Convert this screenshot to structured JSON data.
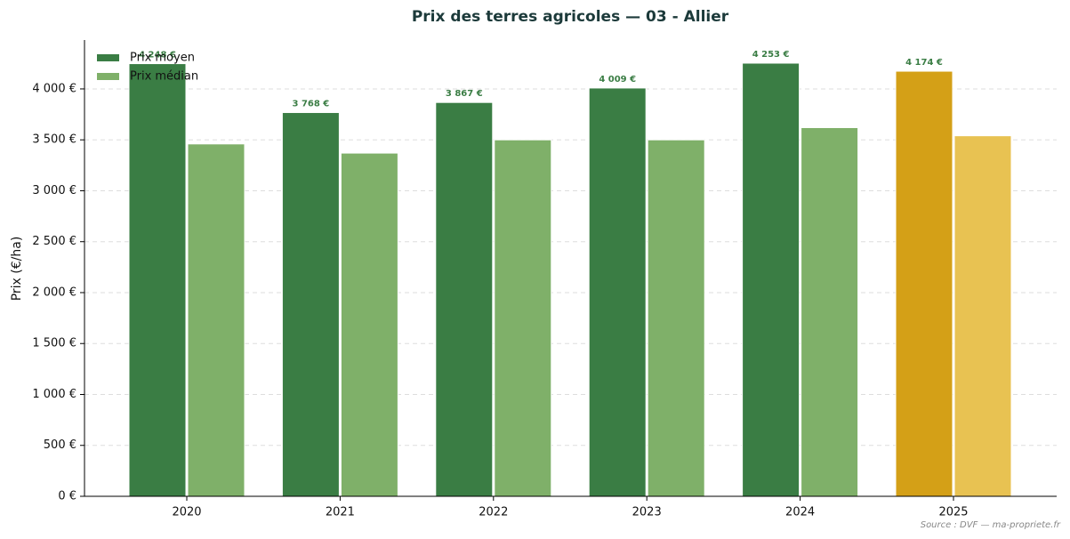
{
  "chart_data": {
    "type": "bar",
    "title": "Prix des terres agricoles — 03 - Allier",
    "ylabel": "Prix (€/ha)",
    "source": "Source : DVF — ma-propriete.fr",
    "categories": [
      "2020",
      "2021",
      "2022",
      "2023",
      "2024",
      "2025"
    ],
    "series": [
      {
        "name": "Prix moyen",
        "color": "#3a7d44",
        "colors": [
          "#3a7d44",
          "#3a7d44",
          "#3a7d44",
          "#3a7d44",
          "#3a7d44",
          "#d4a017"
        ],
        "values": [
          4248,
          3768,
          3867,
          4009,
          4253,
          4174
        ],
        "value_labels": [
          "4 248 €",
          "3 768 €",
          "3 867 €",
          "4 009 €",
          "4 253 €",
          "4 174 €"
        ]
      },
      {
        "name": "Prix médian",
        "color": "#7fb069",
        "colors": [
          "#7fb069",
          "#7fb069",
          "#7fb069",
          "#7fb069",
          "#7fb069",
          "#e8c252"
        ],
        "values": [
          3460,
          3370,
          3500,
          3500,
          3620,
          3540
        ]
      }
    ],
    "ylim": [
      0,
      4480
    ],
    "yticks": [
      {
        "value": 0,
        "label": "0 €"
      },
      {
        "value": 500,
        "label": "500 €"
      },
      {
        "value": 1000,
        "label": "1 000 €"
      },
      {
        "value": 1500,
        "label": "1 500 €"
      },
      {
        "value": 2000,
        "label": "2 000 €"
      },
      {
        "value": 2500,
        "label": "2 500 €"
      },
      {
        "value": 3000,
        "label": "3 000 €"
      },
      {
        "value": 3500,
        "label": "3 500 €"
      },
      {
        "value": 4000,
        "label": "4 000 €"
      }
    ],
    "grid": true,
    "legend": "upper left"
  }
}
